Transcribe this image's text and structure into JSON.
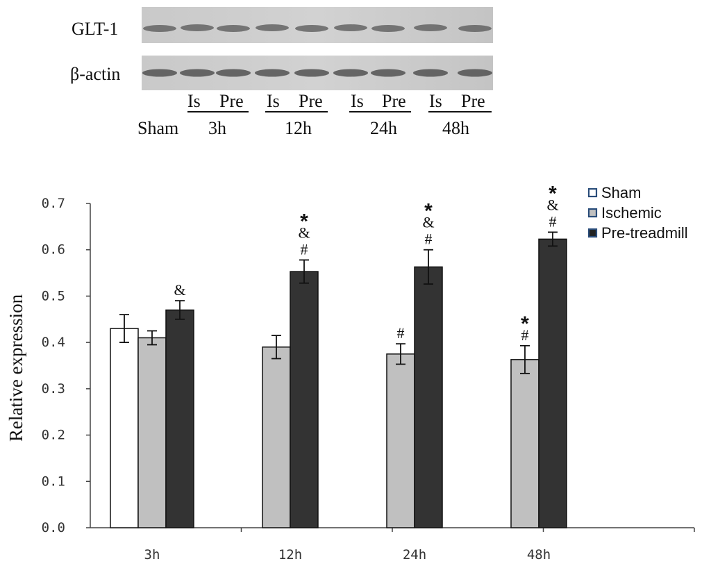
{
  "blot": {
    "rows": [
      {
        "label": "GLT-1"
      },
      {
        "label": "β-actin"
      }
    ],
    "lane_top": [
      "Is",
      "Pre",
      "Is",
      "Pre",
      "Is",
      "Pre",
      "Is",
      "Pre"
    ],
    "lane_bottom": [
      "Sham",
      "3h",
      "12h",
      "24h",
      "48h"
    ]
  },
  "chart_data": {
    "type": "bar",
    "categories": [
      "3h",
      "12h",
      "24h",
      "48h"
    ],
    "ylabel": "Relative expression",
    "ylim": [
      0,
      0.7
    ],
    "yticks": [
      "0.0",
      "0.1",
      "0.2",
      "0.3",
      "0.4",
      "0.5",
      "0.6",
      "0.7"
    ],
    "series": [
      {
        "name": "Sham",
        "color": "#ffffff",
        "values": [
          0.43,
          null,
          null,
          null
        ],
        "errors": [
          0.03,
          null,
          null,
          null
        ]
      },
      {
        "name": "Ischemic",
        "color": "#c0c0c0",
        "values": [
          0.41,
          0.39,
          0.375,
          0.363
        ],
        "errors": [
          0.015,
          0.025,
          0.022,
          0.03
        ]
      },
      {
        "name": "Pre-treadmill",
        "color": "#333333",
        "values": [
          0.47,
          0.553,
          0.563,
          0.623
        ],
        "errors": [
          0.02,
          0.025,
          0.037,
          0.015
        ]
      }
    ],
    "annotations": [
      {
        "category": "3h",
        "series": "Pre-treadmill",
        "marks": [
          "&"
        ]
      },
      {
        "category": "12h",
        "series": "Pre-treadmill",
        "marks": [
          "*",
          "&",
          "#"
        ]
      },
      {
        "category": "24h",
        "series": "Ischemic",
        "marks": [
          "#"
        ]
      },
      {
        "category": "24h",
        "series": "Pre-treadmill",
        "marks": [
          "*",
          "&",
          "#"
        ]
      },
      {
        "category": "48h",
        "series": "Ischemic",
        "marks": [
          "*",
          "#"
        ]
      },
      {
        "category": "48h",
        "series": "Pre-treadmill",
        "marks": [
          "*",
          "&",
          "#"
        ]
      }
    ],
    "legend": {
      "placement": "top-right",
      "items": [
        "Sham",
        "Ischemic",
        "Pre-treadmill"
      ],
      "marker_colors": [
        "#ffffff",
        "#c0c0c0",
        "#222222"
      ]
    }
  }
}
